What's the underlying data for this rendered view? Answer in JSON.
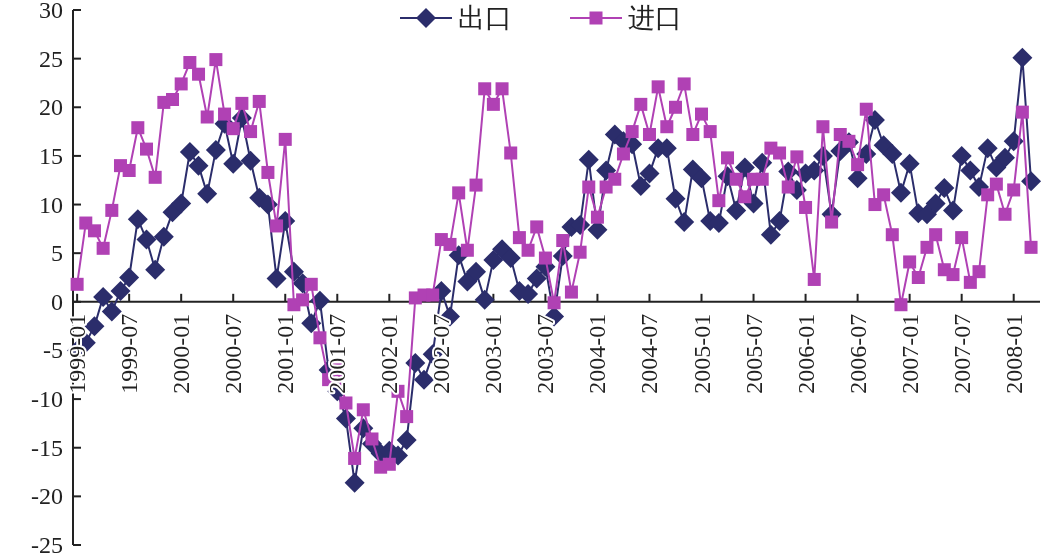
{
  "chart_data": {
    "type": "line",
    "legend": "top",
    "ylim": [
      -25,
      30
    ],
    "yticks": [
      -25,
      -20,
      -15,
      -10,
      -5,
      0,
      5,
      10,
      15,
      20,
      25,
      30
    ],
    "xlim": [
      "1998-12-17",
      "2008-04-02"
    ],
    "xticks": [
      "1999-01",
      "1999-07",
      "2000-01",
      "2000-07",
      "2001-01",
      "2001-07",
      "2002-01",
      "2002-07",
      "2003-01",
      "2003-07",
      "2004-01",
      "2004-07",
      "2005-01",
      "2005-07",
      "2006-01",
      "2006-07",
      "2007-01",
      "2007-07",
      "2008-01"
    ],
    "x": [
      "1999-01",
      "1999-02",
      "1999-03",
      "1999-04",
      "1999-05",
      "1999-06",
      "1999-07",
      "1999-08",
      "1999-09",
      "1999-10",
      "1999-11",
      "1999-12",
      "2000-01",
      "2000-02",
      "2000-03",
      "2000-04",
      "2000-05",
      "2000-06",
      "2000-07",
      "2000-08",
      "2000-09",
      "2000-10",
      "2000-11",
      "2000-12",
      "2001-01",
      "2001-02",
      "2001-03",
      "2001-04",
      "2001-05",
      "2001-06",
      "2001-07",
      "2001-08",
      "2001-09",
      "2001-10",
      "2001-11",
      "2001-12",
      "2002-01",
      "2002-02",
      "2002-03",
      "2002-04",
      "2002-05",
      "2002-06",
      "2002-07",
      "2002-08",
      "2002-09",
      "2002-10",
      "2002-11",
      "2002-12",
      "2003-01",
      "2003-02",
      "2003-03",
      "2003-04",
      "2003-05",
      "2003-06",
      "2003-07",
      "2003-08",
      "2003-09",
      "2003-10",
      "2003-11",
      "2003-12",
      "2004-01",
      "2004-02",
      "2004-03",
      "2004-04",
      "2004-05",
      "2004-06",
      "2004-07",
      "2004-08",
      "2004-09",
      "2004-10",
      "2004-11",
      "2004-12",
      "2005-01",
      "2005-02",
      "2005-03",
      "2005-04",
      "2005-05",
      "2005-06",
      "2005-07",
      "2005-08",
      "2005-09",
      "2005-10",
      "2005-11",
      "2005-12",
      "2006-01",
      "2006-02",
      "2006-03",
      "2006-04",
      "2006-05",
      "2006-06",
      "2006-07",
      "2006-08",
      "2006-09",
      "2006-10",
      "2006-11",
      "2006-12",
      "2007-01",
      "2007-02",
      "2007-03",
      "2007-04",
      "2007-05",
      "2007-06",
      "2007-07",
      "2007-08",
      "2007-09",
      "2007-10",
      "2007-11",
      "2007-12",
      "2008-01",
      "2008-02",
      "2008-03"
    ],
    "series": [
      {
        "name": "出口",
        "color": "#2b2d6b",
        "marker": "diamond",
        "values": [
          -5.0,
          -4.2,
          -2.5,
          0.5,
          -1.0,
          1.1,
          2.5,
          8.5,
          6.4,
          3.3,
          6.7,
          9.2,
          10.1,
          15.4,
          14.0,
          11.1,
          15.6,
          18.3,
          14.2,
          18.9,
          14.5,
          10.7,
          10.0,
          2.4,
          8.3,
          3.1,
          1.9,
          -2.2,
          0.1,
          -7.0,
          -9.2,
          -12.0,
          -18.6,
          -13.0,
          -14.6,
          -15.6,
          -15.3,
          -15.8,
          -14.2,
          -6.3,
          -8.0,
          -5.4,
          1.1,
          -1.5,
          4.8,
          2.1,
          3.1,
          0.2,
          4.3,
          5.4,
          4.5,
          1.1,
          0.8,
          2.4,
          3.6,
          -1.5,
          4.7,
          7.7,
          7.9,
          14.6,
          7.4,
          13.5,
          17.2,
          16.5,
          16.2,
          11.9,
          13.2,
          15.8,
          15.8,
          10.6,
          8.2,
          13.6,
          12.7,
          8.3,
          8.1,
          12.9,
          9.4,
          13.8,
          10.1,
          14.3,
          6.9,
          8.3,
          13.4,
          11.5,
          13.2,
          13.5,
          15.0,
          9.0,
          15.5,
          16.4,
          12.7,
          15.2,
          18.7,
          16.1,
          15.2,
          11.2,
          14.2,
          9.1,
          9.0,
          10.1,
          11.7,
          9.4,
          15.0,
          13.5,
          11.8,
          15.8,
          13.8,
          14.8,
          16.5,
          25.1,
          12.4
        ]
      },
      {
        "name": "进口",
        "color": "#b041b4",
        "marker": "square",
        "values": [
          1.8,
          8.1,
          7.3,
          5.5,
          9.4,
          14.0,
          13.5,
          17.9,
          15.7,
          12.8,
          20.5,
          20.8,
          22.4,
          24.6,
          23.4,
          19.0,
          24.9,
          19.3,
          17.8,
          20.4,
          17.5,
          20.6,
          13.3,
          7.8,
          16.7,
          -0.3,
          0.2,
          1.8,
          -3.7,
          -8.0,
          -7.0,
          -10.4,
          -16.1,
          -11.1,
          -14.1,
          -17.0,
          -16.7,
          -9.2,
          -11.8,
          0.4,
          0.7,
          0.7,
          6.4,
          5.9,
          11.2,
          5.3,
          12.0,
          21.9,
          20.3,
          21.9,
          15.3,
          6.6,
          5.3,
          7.7,
          4.5,
          -0.1,
          6.3,
          1.0,
          5.1,
          11.8,
          8.7,
          11.8,
          12.6,
          15.2,
          17.5,
          20.3,
          17.2,
          22.1,
          18.0,
          20.0,
          22.4,
          17.2,
          19.3,
          17.5,
          10.4,
          14.8,
          12.6,
          10.8,
          12.6,
          12.6,
          15.8,
          15.3,
          11.8,
          14.9,
          9.7,
          2.3,
          18.0,
          8.2,
          17.2,
          16.5,
          14.1,
          19.8,
          10.0,
          11.0,
          6.9,
          -0.3,
          4.1,
          2.5,
          5.6,
          6.9,
          3.3,
          2.8,
          6.6,
          2.0,
          3.1,
          11.0,
          12.1,
          9.0,
          11.5,
          19.5,
          5.6
        ]
      }
    ]
  }
}
